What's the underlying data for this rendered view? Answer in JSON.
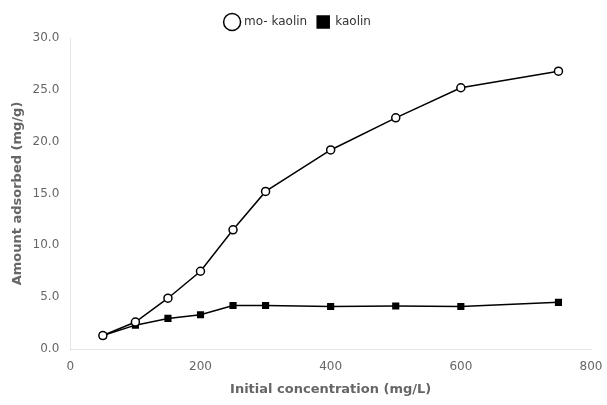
{
  "chart_data": {
    "type": "line",
    "x": [
      50,
      100,
      150,
      200,
      250,
      300,
      400,
      500,
      600,
      750
    ],
    "series": [
      {
        "name": "mo- kaolin",
        "color": "#000000",
        "marker": "circle",
        "line_style": "solid",
        "values": [
          1.3,
          2.6,
          4.9,
          7.5,
          11.5,
          15.2,
          19.2,
          22.3,
          25.2,
          26.8
        ]
      },
      {
        "name": "kaolin",
        "color": "#000000",
        "marker": "square",
        "line_style": "solid",
        "values": [
          1.3,
          2.3,
          2.95,
          3.3,
          4.2,
          4.2,
          4.1,
          4.15,
          4.1,
          4.5
        ]
      }
    ],
    "xlabel": "Initial concentration (mg/L)",
    "ylabel": "Amount adsorbed (mg/g)",
    "xlim": [
      0,
      800
    ],
    "ylim": [
      0.0,
      30.0
    ],
    "xticks": [
      0,
      200,
      400,
      600,
      800
    ],
    "yticks": [
      {
        "value": 0.0,
        "label": "0.0"
      },
      {
        "value": 5.0,
        "label": "5.0"
      },
      {
        "value": 10.0,
        "label": "10.0"
      },
      {
        "value": 15.0,
        "label": "15.0"
      },
      {
        "value": 20.0,
        "label": "20.0"
      },
      {
        "value": 25.0,
        "label": "25.0"
      },
      {
        "value": 30.0,
        "label": "30.0"
      }
    ],
    "grid": false,
    "legend": "top"
  }
}
